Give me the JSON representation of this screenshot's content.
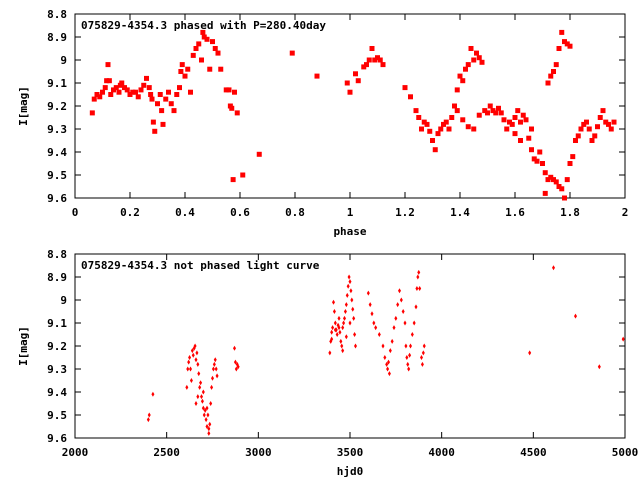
{
  "chart_data": [
    {
      "type": "scatter",
      "title": "075829-4354.3 phased with P=280.40day",
      "xlabel": "phase",
      "ylabel": "I[mag]",
      "xlim": [
        0,
        2
      ],
      "ylim": [
        9.6,
        8.8
      ],
      "y_inverted": true,
      "x_ticks": [
        "0",
        "0.2",
        "0.4",
        "0.6",
        "0.8",
        "1",
        "1.2",
        "1.4",
        "1.6",
        "1.8",
        "2"
      ],
      "x_tick_values": [
        0,
        0.2,
        0.4,
        0.6,
        0.8,
        1.0,
        1.2,
        1.4,
        1.6,
        1.8,
        2.0
      ],
      "y_ticks": [
        "8.8",
        "8.9",
        "9",
        "9.1",
        "9.2",
        "9.3",
        "9.4",
        "9.5",
        "9.6"
      ],
      "y_tick_values": [
        8.8,
        8.9,
        9.0,
        9.1,
        9.2,
        9.3,
        9.4,
        9.5,
        9.6
      ],
      "marker_color": "#ff0000",
      "marker": "filled-square",
      "grid": false,
      "points": [
        [
          0.063,
          9.23
        ],
        [
          0.07,
          9.17
        ],
        [
          0.08,
          9.15
        ],
        [
          0.09,
          9.16
        ],
        [
          0.1,
          9.14
        ],
        [
          0.11,
          9.12
        ],
        [
          0.115,
          9.09
        ],
        [
          0.12,
          9.02
        ],
        [
          0.125,
          9.09
        ],
        [
          0.13,
          9.15
        ],
        [
          0.14,
          9.13
        ],
        [
          0.15,
          9.12
        ],
        [
          0.16,
          9.14
        ],
        [
          0.165,
          9.11
        ],
        [
          0.17,
          9.1
        ],
        [
          0.18,
          9.12
        ],
        [
          0.19,
          9.13
        ],
        [
          0.2,
          9.15
        ],
        [
          0.21,
          9.14
        ],
        [
          0.22,
          9.14
        ],
        [
          0.23,
          9.16
        ],
        [
          0.24,
          9.13
        ],
        [
          0.25,
          9.11
        ],
        [
          0.26,
          9.08
        ],
        [
          0.27,
          9.12
        ],
        [
          0.275,
          9.15
        ],
        [
          0.28,
          9.17
        ],
        [
          0.285,
          9.27
        ],
        [
          0.29,
          9.31
        ],
        [
          0.3,
          9.19
        ],
        [
          0.31,
          9.15
        ],
        [
          0.315,
          9.22
        ],
        [
          0.32,
          9.28
        ],
        [
          0.33,
          9.17
        ],
        [
          0.34,
          9.14
        ],
        [
          0.35,
          9.19
        ],
        [
          0.36,
          9.22
        ],
        [
          0.37,
          9.15
        ],
        [
          0.38,
          9.12
        ],
        [
          0.385,
          9.05
        ],
        [
          0.39,
          9.02
        ],
        [
          0.4,
          9.07
        ],
        [
          0.41,
          9.04
        ],
        [
          0.42,
          9.14
        ],
        [
          0.43,
          8.98
        ],
        [
          0.44,
          8.95
        ],
        [
          0.45,
          8.93
        ],
        [
          0.46,
          9.0
        ],
        [
          0.465,
          8.88
        ],
        [
          0.47,
          8.9
        ],
        [
          0.48,
          8.91
        ],
        [
          0.49,
          9.04
        ],
        [
          0.5,
          8.92
        ],
        [
          0.51,
          8.95
        ],
        [
          0.52,
          8.97
        ],
        [
          0.53,
          9.04
        ],
        [
          0.55,
          9.13
        ],
        [
          0.56,
          9.13
        ],
        [
          0.565,
          9.2
        ],
        [
          0.57,
          9.21
        ],
        [
          0.58,
          9.14
        ],
        [
          0.59,
          9.23
        ],
        [
          0.575,
          9.52
        ],
        [
          0.61,
          9.5
        ],
        [
          0.67,
          9.41
        ],
        [
          0.79,
          8.97
        ],
        [
          0.88,
          9.07
        ],
        [
          0.99,
          9.1
        ],
        [
          1.0,
          9.14
        ],
        [
          1.02,
          9.06
        ],
        [
          1.03,
          9.09
        ],
        [
          1.05,
          9.03
        ],
        [
          1.06,
          9.02
        ],
        [
          1.07,
          9.0
        ],
        [
          1.08,
          8.95
        ],
        [
          1.09,
          9.0
        ],
        [
          1.1,
          8.99
        ],
        [
          1.11,
          9.0
        ],
        [
          1.12,
          9.02
        ],
        [
          1.2,
          9.12
        ],
        [
          1.22,
          9.16
        ],
        [
          1.24,
          9.22
        ],
        [
          1.25,
          9.25
        ],
        [
          1.26,
          9.3
        ],
        [
          1.27,
          9.27
        ],
        [
          1.28,
          9.28
        ],
        [
          1.29,
          9.31
        ],
        [
          1.3,
          9.35
        ],
        [
          1.31,
          9.39
        ],
        [
          1.32,
          9.32
        ],
        [
          1.33,
          9.3
        ],
        [
          1.34,
          9.28
        ],
        [
          1.35,
          9.27
        ],
        [
          1.36,
          9.3
        ],
        [
          1.37,
          9.25
        ],
        [
          1.38,
          9.2
        ],
        [
          1.39,
          9.13
        ],
        [
          1.4,
          9.07
        ],
        [
          1.41,
          9.09
        ],
        [
          1.42,
          9.04
        ],
        [
          1.43,
          9.02
        ],
        [
          1.44,
          8.95
        ],
        [
          1.45,
          9.0
        ],
        [
          1.46,
          8.97
        ],
        [
          1.47,
          8.99
        ],
        [
          1.48,
          9.01
        ],
        [
          1.39,
          9.22
        ],
        [
          1.41,
          9.26
        ],
        [
          1.43,
          9.29
        ],
        [
          1.45,
          9.3
        ],
        [
          1.47,
          9.24
        ],
        [
          1.49,
          9.22
        ],
        [
          1.5,
          9.23
        ],
        [
          1.51,
          9.2
        ],
        [
          1.52,
          9.22
        ],
        [
          1.53,
          9.23
        ],
        [
          1.54,
          9.21
        ],
        [
          1.55,
          9.23
        ],
        [
          1.56,
          9.26
        ],
        [
          1.57,
          9.3
        ],
        [
          1.58,
          9.27
        ],
        [
          1.59,
          9.28
        ],
        [
          1.6,
          9.25
        ],
        [
          1.61,
          9.22
        ],
        [
          1.62,
          9.27
        ],
        [
          1.63,
          9.24
        ],
        [
          1.64,
          9.26
        ],
        [
          1.65,
          9.34
        ],
        [
          1.66,
          9.39
        ],
        [
          1.67,
          9.43
        ],
        [
          1.68,
          9.44
        ],
        [
          1.7,
          9.45
        ],
        [
          1.71,
          9.49
        ],
        [
          1.72,
          9.52
        ],
        [
          1.73,
          9.51
        ],
        [
          1.74,
          9.52
        ],
        [
          1.75,
          9.53
        ],
        [
          1.76,
          9.55
        ],
        [
          1.77,
          9.56
        ],
        [
          1.78,
          9.6
        ],
        [
          1.79,
          9.52
        ],
        [
          1.8,
          9.45
        ],
        [
          1.81,
          9.42
        ],
        [
          1.82,
          9.35
        ],
        [
          1.83,
          9.33
        ],
        [
          1.84,
          9.3
        ],
        [
          1.85,
          9.28
        ],
        [
          1.86,
          9.27
        ],
        [
          1.87,
          9.3
        ],
        [
          1.88,
          9.35
        ],
        [
          1.89,
          9.33
        ],
        [
          1.9,
          9.29
        ],
        [
          1.91,
          9.25
        ],
        [
          1.92,
          9.22
        ],
        [
          1.93,
          9.27
        ],
        [
          1.94,
          9.28
        ],
        [
          1.95,
          9.3
        ],
        [
          1.96,
          9.27
        ],
        [
          1.72,
          9.1
        ],
        [
          1.73,
          9.07
        ],
        [
          1.74,
          9.05
        ],
        [
          1.75,
          9.02
        ],
        [
          1.76,
          8.95
        ],
        [
          1.77,
          8.88
        ],
        [
          1.78,
          8.92
        ],
        [
          1.79,
          8.93
        ],
        [
          1.8,
          8.94
        ],
        [
          1.71,
          9.58
        ],
        [
          1.69,
          9.4
        ],
        [
          1.66,
          9.3
        ],
        [
          1.62,
          9.35
        ],
        [
          1.6,
          9.32
        ]
      ]
    },
    {
      "type": "scatter",
      "title": "075829-4354.3 not phased light curve",
      "xlabel": "hjd0",
      "ylabel": "I[mag]",
      "xlim": [
        2000,
        5000
      ],
      "ylim": [
        9.6,
        8.8
      ],
      "y_inverted": true,
      "x_ticks": [
        "2000",
        "2500",
        "3000",
        "3500",
        "4000",
        "4500",
        "5000"
      ],
      "x_tick_values": [
        2000,
        2500,
        3000,
        3500,
        4000,
        4500,
        5000
      ],
      "y_ticks": [
        "8.8",
        "8.9",
        "9",
        "9.1",
        "9.2",
        "9.3",
        "9.4",
        "9.5",
        "9.6"
      ],
      "y_tick_values": [
        8.8,
        8.9,
        9.0,
        9.1,
        9.2,
        9.3,
        9.4,
        9.5,
        9.6
      ],
      "marker_color": "#ff0000",
      "marker": "small-diamond",
      "grid": false,
      "points": [
        [
          2400,
          9.52
        ],
        [
          2405,
          9.5
        ],
        [
          2425,
          9.41
        ],
        [
          2610,
          9.38
        ],
        [
          2615,
          9.3
        ],
        [
          2620,
          9.27
        ],
        [
          2625,
          9.25
        ],
        [
          2630,
          9.3
        ],
        [
          2635,
          9.35
        ],
        [
          2640,
          9.22
        ],
        [
          2645,
          9.24
        ],
        [
          2650,
          9.21
        ],
        [
          2655,
          9.2
        ],
        [
          2660,
          9.26
        ],
        [
          2665,
          9.23
        ],
        [
          2670,
          9.28
        ],
        [
          2675,
          9.32
        ],
        [
          2680,
          9.38
        ],
        [
          2685,
          9.36
        ],
        [
          2690,
          9.42
        ],
        [
          2695,
          9.44
        ],
        [
          2700,
          9.47
        ],
        [
          2705,
          9.5
        ],
        [
          2710,
          9.48
        ],
        [
          2715,
          9.52
        ],
        [
          2720,
          9.55
        ],
        [
          2725,
          9.5
        ],
        [
          2730,
          9.58
        ],
        [
          2735,
          9.54
        ],
        [
          2740,
          9.45
        ],
        [
          2745,
          9.38
        ],
        [
          2750,
          9.34
        ],
        [
          2755,
          9.3
        ],
        [
          2760,
          9.28
        ],
        [
          2765,
          9.26
        ],
        [
          2770,
          9.3
        ],
        [
          2775,
          9.33
        ],
        [
          2660,
          9.45
        ],
        [
          2670,
          9.42
        ],
        [
          2700,
          9.4
        ],
        [
          2720,
          9.47
        ],
        [
          2730,
          9.56
        ],
        [
          2870,
          9.21
        ],
        [
          2875,
          9.27
        ],
        [
          2880,
          9.3
        ],
        [
          2885,
          9.28
        ],
        [
          2890,
          9.29
        ],
        [
          3390,
          9.23
        ],
        [
          3395,
          9.18
        ],
        [
          3400,
          9.14
        ],
        [
          3405,
          9.12
        ],
        [
          3410,
          9.01
        ],
        [
          3415,
          9.05
        ],
        [
          3420,
          9.1
        ],
        [
          3425,
          9.13
        ],
        [
          3430,
          9.15
        ],
        [
          3435,
          9.11
        ],
        [
          3440,
          9.12
        ],
        [
          3445,
          9.14
        ],
        [
          3450,
          9.18
        ],
        [
          3455,
          9.2
        ],
        [
          3460,
          9.22
        ],
        [
          3465,
          9.1
        ],
        [
          3470,
          9.08
        ],
        [
          3475,
          9.05
        ],
        [
          3480,
          9.02
        ],
        [
          3485,
          8.98
        ],
        [
          3490,
          8.94
        ],
        [
          3495,
          8.9
        ],
        [
          3500,
          8.92
        ],
        [
          3505,
          8.96
        ],
        [
          3510,
          9.0
        ],
        [
          3515,
          9.04
        ],
        [
          3520,
          9.08
        ],
        [
          3525,
          9.15
        ],
        [
          3530,
          9.2
        ],
        [
          3400,
          9.17
        ],
        [
          3420,
          9.13
        ],
        [
          3440,
          9.08
        ],
        [
          3460,
          9.12
        ],
        [
          3480,
          9.16
        ],
        [
          3500,
          9.1
        ],
        [
          3600,
          8.97
        ],
        [
          3610,
          9.02
        ],
        [
          3620,
          9.06
        ],
        [
          3630,
          9.1
        ],
        [
          3640,
          9.12
        ],
        [
          3660,
          9.15
        ],
        [
          3680,
          9.2
        ],
        [
          3690,
          9.25
        ],
        [
          3700,
          9.28
        ],
        [
          3705,
          9.3
        ],
        [
          3710,
          9.27
        ],
        [
          3715,
          9.32
        ],
        [
          3720,
          9.22
        ],
        [
          3730,
          9.18
        ],
        [
          3740,
          9.12
        ],
        [
          3750,
          9.08
        ],
        [
          3760,
          9.02
        ],
        [
          3770,
          8.96
        ],
        [
          3780,
          9.0
        ],
        [
          3790,
          9.05
        ],
        [
          3800,
          9.1
        ],
        [
          3805,
          9.2
        ],
        [
          3810,
          9.25
        ],
        [
          3815,
          9.28
        ],
        [
          3820,
          9.3
        ],
        [
          3825,
          9.24
        ],
        [
          3830,
          9.2
        ],
        [
          3840,
          9.15
        ],
        [
          3850,
          9.1
        ],
        [
          3860,
          9.03
        ],
        [
          3865,
          8.95
        ],
        [
          3870,
          8.9
        ],
        [
          3875,
          8.88
        ],
        [
          3880,
          8.95
        ],
        [
          3890,
          9.25
        ],
        [
          3895,
          9.28
        ],
        [
          3900,
          9.23
        ],
        [
          3905,
          9.2
        ],
        [
          4480,
          9.23
        ],
        [
          4610,
          8.86
        ],
        [
          4730,
          9.07
        ],
        [
          4860,
          9.29
        ],
        [
          4990,
          9.17
        ]
      ]
    }
  ]
}
